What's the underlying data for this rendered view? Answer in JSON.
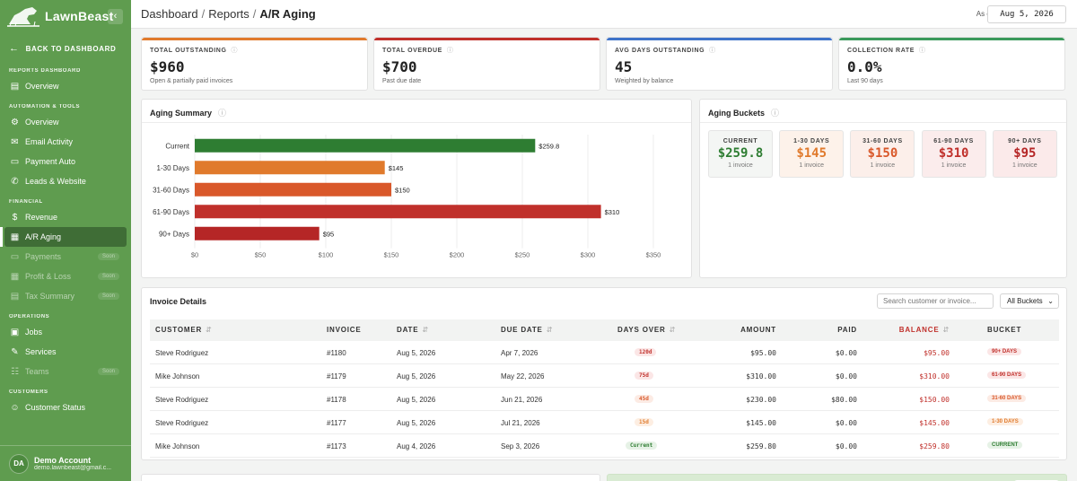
{
  "brand": {
    "name": "LawnBeast"
  },
  "sidebar": {
    "back_label": "BACK TO DASHBOARD",
    "sections": [
      {
        "label": "REPORTS DASHBOARD",
        "items": [
          {
            "label": "Overview",
            "icon": "layout-icon"
          }
        ]
      },
      {
        "label": "AUTOMATION & TOOLS",
        "items": [
          {
            "label": "Overview",
            "icon": "gear-icon"
          },
          {
            "label": "Email Activity",
            "icon": "mail-icon"
          },
          {
            "label": "Payment Auto",
            "icon": "card-icon"
          },
          {
            "label": "Leads & Website",
            "icon": "megaphone-icon"
          }
        ]
      },
      {
        "label": "FINANCIAL",
        "items": [
          {
            "label": "Revenue",
            "icon": "dollar-icon"
          },
          {
            "label": "A/R Aging",
            "icon": "document-icon",
            "active": true
          },
          {
            "label": "Payments",
            "icon": "card-icon",
            "soon": "Soon"
          },
          {
            "label": "Profit & Loss",
            "icon": "document-icon",
            "soon": "Soon"
          },
          {
            "label": "Tax Summary",
            "icon": "receipt-icon",
            "soon": "Soon"
          }
        ]
      },
      {
        "label": "OPERATIONS",
        "items": [
          {
            "label": "Jobs",
            "icon": "clipboard-icon"
          },
          {
            "label": "Services",
            "icon": "wrench-icon"
          },
          {
            "label": "Teams",
            "icon": "people-icon",
            "soon": "Soon"
          }
        ]
      },
      {
        "label": "CUSTOMERS",
        "items": [
          {
            "label": "Customer Status",
            "icon": "user-icon"
          }
        ]
      }
    ],
    "account": {
      "initials": "DA",
      "name": "Demo Account",
      "email": "demo.lawnbeast@gmail.c..."
    }
  },
  "header": {
    "breadcrumbs": [
      "Dashboard",
      "Reports",
      "A/R Aging"
    ],
    "as_of_label": "As of",
    "date_value": "Aug 5, 2026"
  },
  "kpis": [
    {
      "label": "TOTAL OUTSTANDING",
      "value": "$960",
      "sub": "Open & partially paid invoices",
      "color": "#e07a2c"
    },
    {
      "label": "TOTAL OVERDUE",
      "value": "$700",
      "sub": "Past due date",
      "color": "#c0302b"
    },
    {
      "label": "AVG DAYS OUTSTANDING",
      "value": "45",
      "sub": "Weighted by balance",
      "color": "#3e73c9"
    },
    {
      "label": "COLLECTION RATE",
      "value": "0.0%",
      "sub": "Last 90 days",
      "color": "#3a9a5b"
    }
  ],
  "aging_summary": {
    "title": "Aging Summary"
  },
  "chart_data": {
    "type": "bar",
    "orientation": "horizontal",
    "categories": [
      "Current",
      "1-30 Days",
      "31-60 Days",
      "61-90 Days",
      "90+ Days"
    ],
    "values": [
      259.8,
      145,
      150,
      310,
      95
    ],
    "value_labels": [
      "$259.8",
      "$145",
      "$150",
      "$310",
      "$95"
    ],
    "colors": [
      "#2e7d32",
      "#e07a2c",
      "#d9582a",
      "#c0302b",
      "#b52626"
    ],
    "xlim": [
      0,
      350
    ],
    "x_ticks": [
      "$0",
      "$50",
      "$100",
      "$150",
      "$200",
      "$250",
      "$300",
      "$350"
    ],
    "grid": true
  },
  "aging_buckets": {
    "title": "Aging Buckets",
    "items": [
      {
        "label": "CURRENT",
        "value": "$259.8",
        "count": "1 invoice",
        "color": "#2e7d32",
        "bg": "#f4f6f4"
      },
      {
        "label": "1-30 DAYS",
        "value": "$145",
        "count": "1 invoice",
        "color": "#e07a2c",
        "bg": "#fdf2ea"
      },
      {
        "label": "31-60 DAYS",
        "value": "$150",
        "count": "1 invoice",
        "color": "#d9582a",
        "bg": "#fcefea"
      },
      {
        "label": "61-90 DAYS",
        "value": "$310",
        "count": "1 invoice",
        "color": "#c0302b",
        "bg": "#fbecec"
      },
      {
        "label": "90+ DAYS",
        "value": "$95",
        "count": "1 invoice",
        "color": "#b52626",
        "bg": "#fbeaea"
      }
    ]
  },
  "invoices": {
    "title": "Invoice Details",
    "search_placeholder": "Search customer or invoice...",
    "filter_value": "All Buckets",
    "columns": [
      "CUSTOMER",
      "INVOICE",
      "DATE",
      "DUE DATE",
      "DAYS OVER",
      "AMOUNT",
      "PAID",
      "BALANCE",
      "BUCKET"
    ],
    "rows": [
      {
        "customer": "Steve Rodriguez",
        "invoice": "#1180",
        "date": "Aug 5, 2026",
        "due": "Apr 7, 2026",
        "days": "120d",
        "amount": "$95.00",
        "paid": "$0.00",
        "balance": "$95.00",
        "bucket": "90+ DAYS",
        "status_color": "#c0302b",
        "status_bg": "#fbe6e6"
      },
      {
        "customer": "Mike Johnson",
        "invoice": "#1179",
        "date": "Aug 5, 2026",
        "due": "May 22, 2026",
        "days": "75d",
        "amount": "$310.00",
        "paid": "$0.00",
        "balance": "$310.00",
        "bucket": "61-90 DAYS",
        "status_color": "#c0302b",
        "status_bg": "#fbe6e6"
      },
      {
        "customer": "Steve Rodriguez",
        "invoice": "#1178",
        "date": "Aug 5, 2026",
        "due": "Jun 21, 2026",
        "days": "45d",
        "amount": "$230.00",
        "paid": "$80.00",
        "balance": "$150.00",
        "bucket": "31-60 DAYS",
        "status_color": "#d9582a",
        "status_bg": "#fcebe4"
      },
      {
        "customer": "Steve Rodriguez",
        "invoice": "#1177",
        "date": "Aug 5, 2026",
        "due": "Jul 21, 2026",
        "days": "15d",
        "amount": "$145.00",
        "paid": "$0.00",
        "balance": "$145.00",
        "bucket": "1-30 DAYS",
        "status_color": "#e07a2c",
        "status_bg": "#fdeee2"
      },
      {
        "customer": "Mike Johnson",
        "invoice": "#1173",
        "date": "Aug 4, 2026",
        "due": "Sep 3, 2026",
        "days": "Current",
        "amount": "$259.80",
        "paid": "$0.00",
        "balance": "$259.80",
        "bucket": "CURRENT",
        "status_color": "#2e7d32",
        "status_bg": "#e6f2e6"
      }
    ]
  }
}
